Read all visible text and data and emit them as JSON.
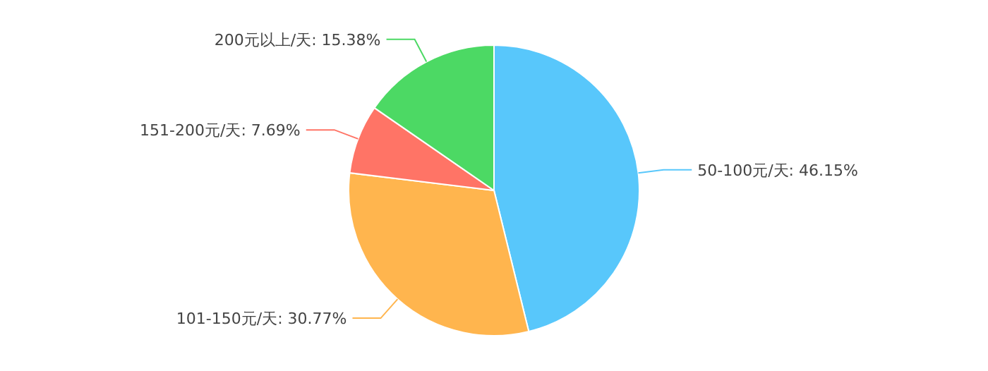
{
  "chart_data": {
    "type": "pie",
    "categories": [
      "50-100元/天",
      "101-150元/天",
      "151-200元/天",
      "200元以上/天"
    ],
    "values": [
      46.15,
      30.77,
      7.69,
      15.38
    ],
    "value_labels": [
      ": 46.15%",
      ": 30.77%",
      ": 7.69%",
      ": 15.38%"
    ],
    "colors": [
      "#58c7fb",
      "#ffb54e",
      "#ff7466",
      "#4cd964"
    ]
  }
}
